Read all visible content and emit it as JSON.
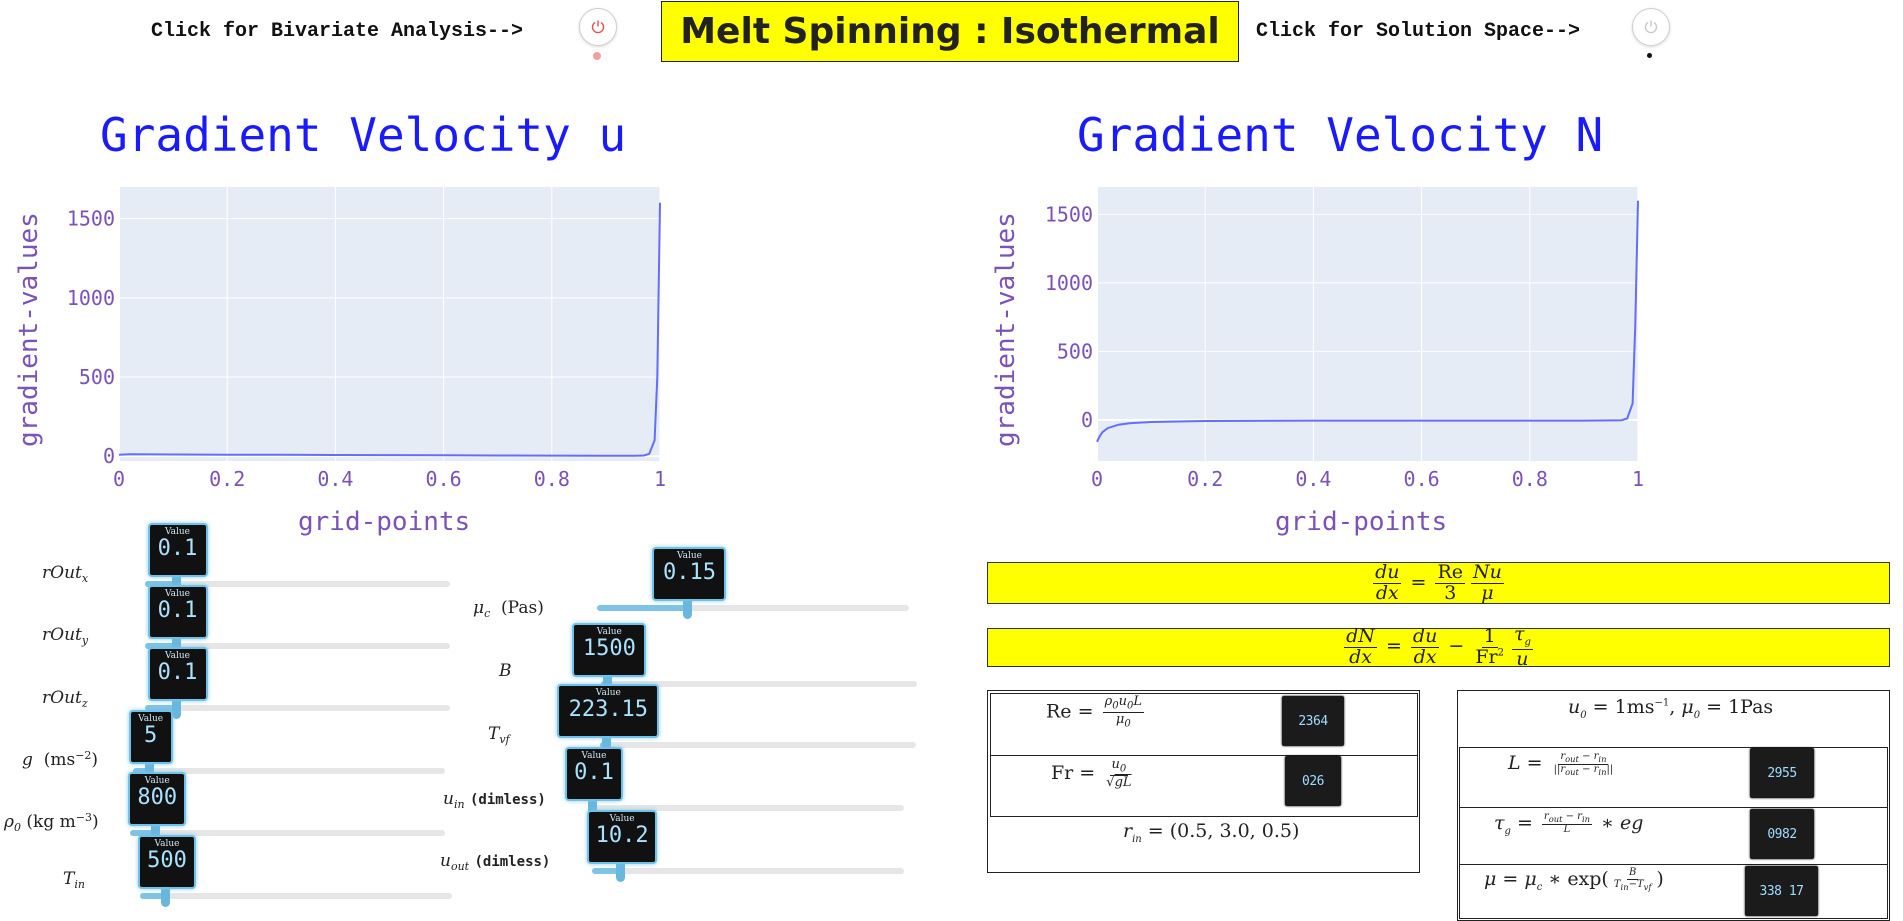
{
  "header": {
    "bivariate_label": "Click for Bivariate Analysis-->",
    "solution_label": "Click for Solution Space-->",
    "title": "Melt Spinning : Isothermal"
  },
  "charts": {
    "left_title": "Gradient Velocity u",
    "right_title": "Gradient Velocity N",
    "xlabel": "grid-points",
    "ylabel": "gradient-values"
  },
  "chart_data": [
    {
      "type": "line",
      "title": "Gradient Velocity u",
      "xlabel": "grid-points",
      "ylabel": "gradient-values",
      "xlim": [
        0,
        1
      ],
      "ylim": [
        -30,
        1700
      ],
      "x_ticks": [
        "0",
        "0.2",
        "0.4",
        "0.6",
        "0.8",
        "1"
      ],
      "y_ticks": [
        "0",
        "500",
        "1000",
        "1500"
      ],
      "grid": true,
      "series": [
        {
          "x": [
            0,
            0.02,
            0.1,
            0.2,
            0.3,
            0.4,
            0.5,
            0.6,
            0.7,
            0.8,
            0.9,
            0.95,
            0.97,
            0.98,
            0.99,
            0.995,
            1.0
          ],
          "y": [
            10,
            12,
            11,
            10,
            9,
            8,
            7,
            6,
            5,
            4,
            3,
            3,
            5,
            15,
            100,
            500,
            1600
          ]
        }
      ]
    },
    {
      "type": "line",
      "title": "Gradient Velocity N",
      "xlabel": "grid-points",
      "ylabel": "gradient-values",
      "xlim": [
        0,
        1
      ],
      "ylim": [
        -300,
        1700
      ],
      "x_ticks": [
        "0",
        "0.2",
        "0.4",
        "0.6",
        "0.8",
        "1"
      ],
      "y_ticks": [
        "0",
        "500",
        "1000",
        "1500"
      ],
      "grid": true,
      "series": [
        {
          "x": [
            0,
            0.005,
            0.01,
            0.02,
            0.04,
            0.06,
            0.1,
            0.2,
            0.4,
            0.6,
            0.8,
            0.9,
            0.95,
            0.97,
            0.98,
            0.99,
            0.995,
            1.0
          ],
          "y": [
            -160,
            -120,
            -90,
            -60,
            -35,
            -25,
            -15,
            -8,
            -5,
            -5,
            -5,
            -5,
            -4,
            -2,
            10,
            120,
            700,
            1600
          ]
        }
      ]
    }
  ],
  "sliders_left": [
    {
      "value": "0.1",
      "fraction": 0.1
    },
    {
      "value": "0.1",
      "fraction": 0.1
    },
    {
      "value": "0.1",
      "fraction": 0.1
    },
    {
      "value": "5",
      "fraction": 0.05
    },
    {
      "value": "800",
      "fraction": 0.08
    },
    {
      "value": "500",
      "fraction": 0.08
    }
  ],
  "sliders_right": [
    {
      "value": "0.15",
      "fraction": 0.29
    },
    {
      "value": "1500",
      "fraction": 0.02
    },
    {
      "value": "223.15",
      "fraction": 0.02
    },
    {
      "value": "0.1",
      "fraction": 0.0
    },
    {
      "value": "10.2",
      "fraction": 0.09
    }
  ],
  "slider_value_caption": "Value",
  "slider_units": {
    "mu_c": "(Pas)",
    "g": "(ms",
    "rho": "(kg m",
    "dimless": "(dimless)"
  },
  "displays": {
    "re": "2364",
    "fr": "026",
    "L": "2955",
    "tau_g": "0982",
    "mu": "338 17"
  },
  "equations": {
    "r_in": "(0.5, 3.0, 0.5)",
    "u0_mu0": "= 1ms"
  }
}
